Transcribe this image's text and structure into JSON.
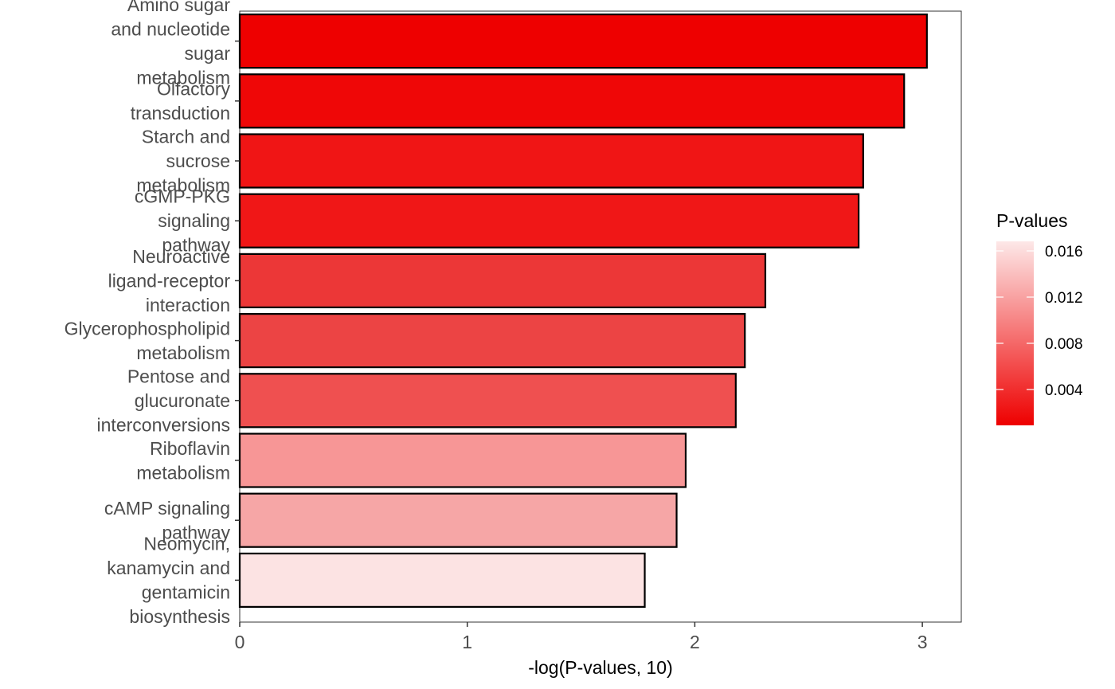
{
  "chart_data": {
    "type": "bar",
    "orientation": "horizontal",
    "xlabel": "-log(P-values, 10)",
    "xlim": [
      0,
      3.17
    ],
    "xticks": [
      "0",
      "1",
      "2",
      "3"
    ],
    "categories": [
      [
        "Amino sugar",
        "and nucleotide",
        "sugar",
        "metabolism"
      ],
      [
        "Olfactory",
        "transduction"
      ],
      [
        "Starch and",
        "sucrose",
        "metabolism"
      ],
      [
        "cGMP-PKG",
        "signaling",
        "pathway"
      ],
      [
        "Neuroactive",
        "ligand-receptor",
        "interaction"
      ],
      [
        "Glycerophospholipid",
        "metabolism"
      ],
      [
        "Pentose and",
        "glucuronate",
        "interconversions"
      ],
      [
        "Riboflavin",
        "metabolism"
      ],
      [
        "cAMP signaling",
        "pathway"
      ],
      [
        "Neomycin,",
        "kanamycin and",
        "gentamicin",
        "biosynthesis"
      ]
    ],
    "values": [
      3.02,
      2.92,
      2.74,
      2.72,
      2.31,
      2.22,
      2.18,
      1.96,
      1.92,
      1.78
    ],
    "colors": [
      "#ee0000",
      "#ef0707",
      "#f01515",
      "#f01717",
      "#ec3737",
      "#ec4444",
      "#ef5050",
      "#f79696",
      "#f6a6a6",
      "#fce3e3"
    ],
    "legend": {
      "title": "P-values",
      "labels": [
        "0.016",
        "0.012",
        "0.008",
        "0.004"
      ],
      "gradient_top": "#fde8e8",
      "gradient_bottom": "#ee0000",
      "placement": "right"
    },
    "grid": false
  }
}
